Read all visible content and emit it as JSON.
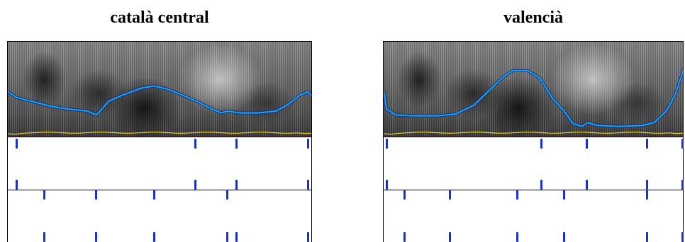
{
  "panels": [
    {
      "id": "left",
      "title": "català central",
      "pitch_contour": [
        [
          0,
          0.52
        ],
        [
          0.03,
          0.58
        ],
        [
          0.08,
          0.62
        ],
        [
          0.14,
          0.67
        ],
        [
          0.2,
          0.7
        ],
        [
          0.26,
          0.72
        ],
        [
          0.29,
          0.76
        ],
        [
          0.3,
          0.73
        ],
        [
          0.33,
          0.62
        ],
        [
          0.38,
          0.55
        ],
        [
          0.44,
          0.48
        ],
        [
          0.48,
          0.46
        ],
        [
          0.52,
          0.49
        ],
        [
          0.57,
          0.55
        ],
        [
          0.62,
          0.62
        ],
        [
          0.67,
          0.7
        ],
        [
          0.7,
          0.74
        ],
        [
          0.72,
          0.72
        ],
        [
          0.76,
          0.74
        ],
        [
          0.82,
          0.74
        ],
        [
          0.88,
          0.72
        ],
        [
          0.92,
          0.65
        ],
        [
          0.96,
          0.55
        ],
        [
          0.985,
          0.52
        ],
        [
          1.0,
          0.58
        ]
      ],
      "tier1_marks": [
        0.03,
        0.615,
        0.75,
        0.985
      ],
      "tier2_marks_upper": [
        0.03,
        0.615,
        0.75,
        0.985
      ],
      "tier2_marks_lower": [
        0.12,
        0.29,
        0.48,
        0.72
      ],
      "tier3_marks": [
        0.12,
        0.29,
        0.48,
        0.72,
        0.75,
        0.985
      ]
    },
    {
      "id": "right",
      "title": "valencià",
      "pitch_contour": [
        [
          0,
          0.5
        ],
        [
          0.01,
          0.7
        ],
        [
          0.04,
          0.76
        ],
        [
          0.1,
          0.77
        ],
        [
          0.18,
          0.77
        ],
        [
          0.24,
          0.75
        ],
        [
          0.3,
          0.66
        ],
        [
          0.36,
          0.48
        ],
        [
          0.4,
          0.36
        ],
        [
          0.43,
          0.3
        ],
        [
          0.48,
          0.3
        ],
        [
          0.52,
          0.38
        ],
        [
          0.56,
          0.58
        ],
        [
          0.6,
          0.72
        ],
        [
          0.63,
          0.85
        ],
        [
          0.66,
          0.88
        ],
        [
          0.68,
          0.84
        ],
        [
          0.71,
          0.87
        ],
        [
          0.78,
          0.88
        ],
        [
          0.86,
          0.87
        ],
        [
          0.9,
          0.84
        ],
        [
          0.94,
          0.72
        ],
        [
          0.97,
          0.55
        ],
        [
          1.0,
          0.26
        ]
      ],
      "tier1_marks": [
        0.01,
        0.525,
        0.675,
        0.875,
        0.995
      ],
      "tier2_marks_upper": [
        0.01,
        0.525,
        0.675,
        0.875,
        0.995
      ],
      "tier2_marks_lower": [
        0.07,
        0.22,
        0.445,
        0.6,
        0.875
      ],
      "tier3_marks": [
        0.07,
        0.22,
        0.445,
        0.6,
        0.875,
        0.995
      ]
    }
  ],
  "colors": {
    "pitch_line": "#1fa0e8",
    "pitch_outline": "#0a2a80",
    "intensity_line": "#e8d020",
    "tier_mark": "#1a2fd6",
    "baseline_dash": "#cc2020"
  }
}
